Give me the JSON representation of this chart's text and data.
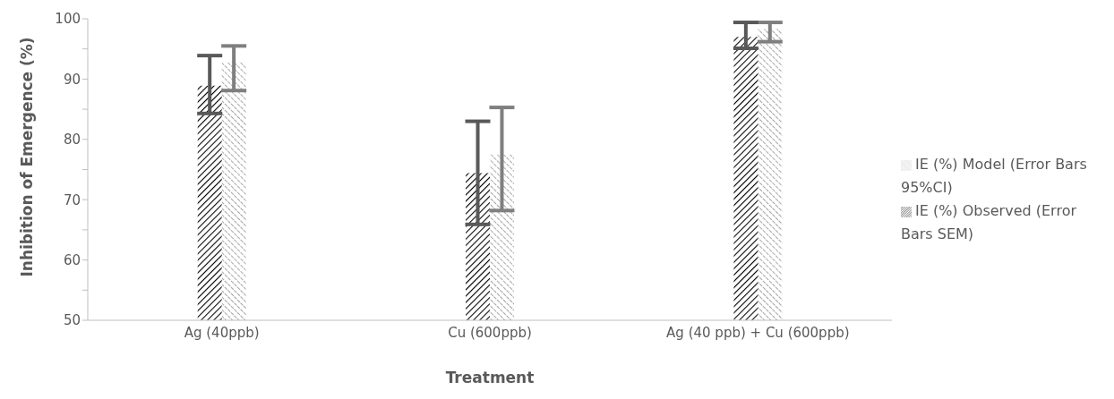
{
  "chart_data": {
    "type": "bar",
    "xlabel": "Treatment",
    "ylabel": "Inhibition of Emergence (%)",
    "categories": [
      "Ag (40ppb)",
      "Cu (600ppb)",
      "Ag (40 ppb) + Cu (600ppb)"
    ],
    "series": [
      {
        "name": "IE (%) Observed (Error Bars SEM)",
        "color": "#000000",
        "values": [
          88.9,
          74.4,
          97.0
        ],
        "errors": [
          [
            84.3,
            93.9
          ],
          [
            65.9,
            83.0
          ],
          [
            95.1,
            99.4
          ]
        ]
      },
      {
        "name": "IE (%) Model (Error Bars 95%CI)",
        "color": "#808080",
        "values": [
          92.8,
          77.5,
          98.3
        ],
        "errors": [
          [
            88.1,
            95.5
          ],
          [
            68.2,
            85.3
          ],
          [
            96.2,
            99.4
          ]
        ]
      }
    ],
    "ylim": [
      50,
      100
    ],
    "yticks": [
      50,
      {
        "value": 55,
        "label": null
      },
      60,
      {
        "value": 65,
        "label": null
      },
      70,
      {
        "value": 75,
        "label": null
      },
      80,
      {
        "value": 85,
        "label": null
      },
      90,
      {
        "value": 95,
        "label": null
      },
      100
    ],
    "grid": false,
    "legend": "right"
  }
}
